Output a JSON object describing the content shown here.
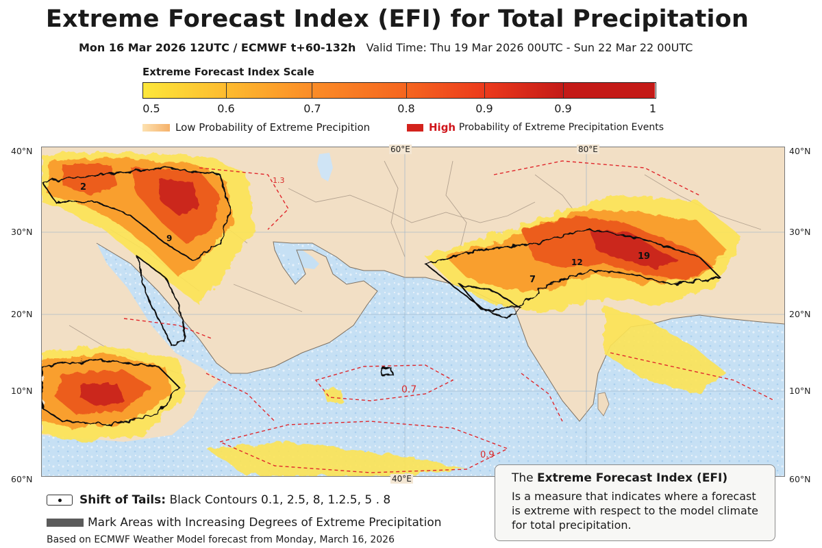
{
  "title": "Extreme Forecast Index (EFI) for Total Precipitation",
  "subtitle": {
    "run": "Mon 16 Mar 2026 12UTC / ECMWF t+60-132h",
    "valid": "Valid Time: Thu 19 Mar 2026 00UTC - Sun 22 Mar 22 00UTC"
  },
  "scale": {
    "title": "Extreme Forecast Index Scale",
    "ticks": [
      "0.5",
      "0.6",
      "0.7",
      "0.8",
      "0.9",
      "0.9",
      "1"
    ],
    "colors": [
      "#fde73a",
      "#fdbb2f",
      "#fb8c27",
      "#f5651f",
      "#ec3a1c",
      "#c41a17"
    ]
  },
  "legend": {
    "low": "Low Probability of Extreme Precipition",
    "high_word": "High",
    "high_rest": "Probability of Extreme Precipitation Events",
    "low_color": "#f5b16a",
    "high_color": "#d3221c"
  },
  "map": {
    "lat_labels": {
      "left": [
        "40°N",
        "30°N",
        "20°N",
        "10°N",
        "60°N"
      ],
      "right": [
        "40°N",
        "30°N",
        "20°N",
        "10°N",
        "60°N"
      ]
    },
    "lon_labels": {
      "top": [
        "60°E",
        "80°E"
      ],
      "bottom": [
        "40°E"
      ]
    },
    "contour_labels": [
      "0.7",
      "0.9",
      "1.3",
      "2",
      "9",
      "7",
      "19",
      "12"
    ]
  },
  "bottom": {
    "shift_bold": "Shift of Tails:",
    "shift_rest": "Black Contours 0.1, 2.5, 8, 1.2.5, 5 . 8",
    "mark_areas": "Mark Areas with Increasing Degrees of Extreme Precipitation",
    "based_on": "Based on ECMWF Weather Model forecast from Monday, March 16, 2026"
  },
  "info": {
    "prefix": "The",
    "title": "Extreme Forecast Index (EFI)",
    "text": "Is a measure that indicates where a forecast is extreme with respect to the model climate for total precipitation."
  }
}
